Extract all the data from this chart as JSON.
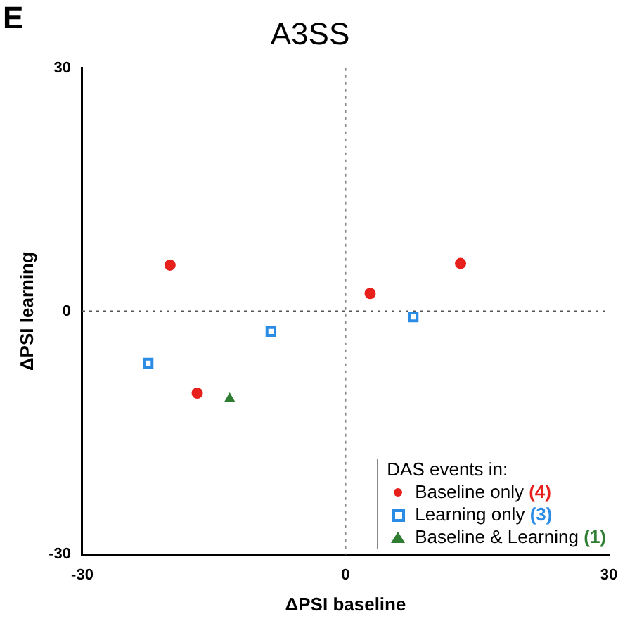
{
  "chart_data": {
    "type": "scatter",
    "title": "A3SS",
    "xlabel": "ΔPSI baseline",
    "ylabel": "ΔPSI learning",
    "legend_title": "DAS events in:",
    "legend": "bottom right",
    "grid": false,
    "xlim": [
      -30,
      30
    ],
    "xticks": [
      -30,
      0,
      30
    ],
    "ylim": [
      -30,
      30
    ],
    "yticks": [
      -30,
      0,
      30
    ],
    "annotations": [
      "E"
    ],
    "ref_lines": [
      {
        "axis": "x",
        "value": 0,
        "line_style": "dotted",
        "color": "#888888"
      },
      {
        "axis": "y",
        "value": 0,
        "line_style": "dotted",
        "color": "#555555"
      }
    ],
    "series": [
      {
        "name": "Baseline only (4)",
        "color": "#e8201c",
        "marker": "circle",
        "x": [
          -20,
          2.8,
          13.1,
          -16.9
        ],
        "values": [
          5.7,
          2.2,
          5.9,
          -10.1
        ]
      },
      {
        "name": "Learning only (3)",
        "color": "#2b8ce6",
        "marker": "square",
        "x": [
          -22.5,
          -8.5,
          7.7
        ],
        "values": [
          -6.4,
          -2.5,
          -0.7
        ]
      },
      {
        "name": "Baseline & Learning (1)",
        "color": "#2e7d32",
        "marker": "triangle",
        "x": [
          -13.2
        ],
        "values": [
          -10.8
        ]
      }
    ]
  }
}
